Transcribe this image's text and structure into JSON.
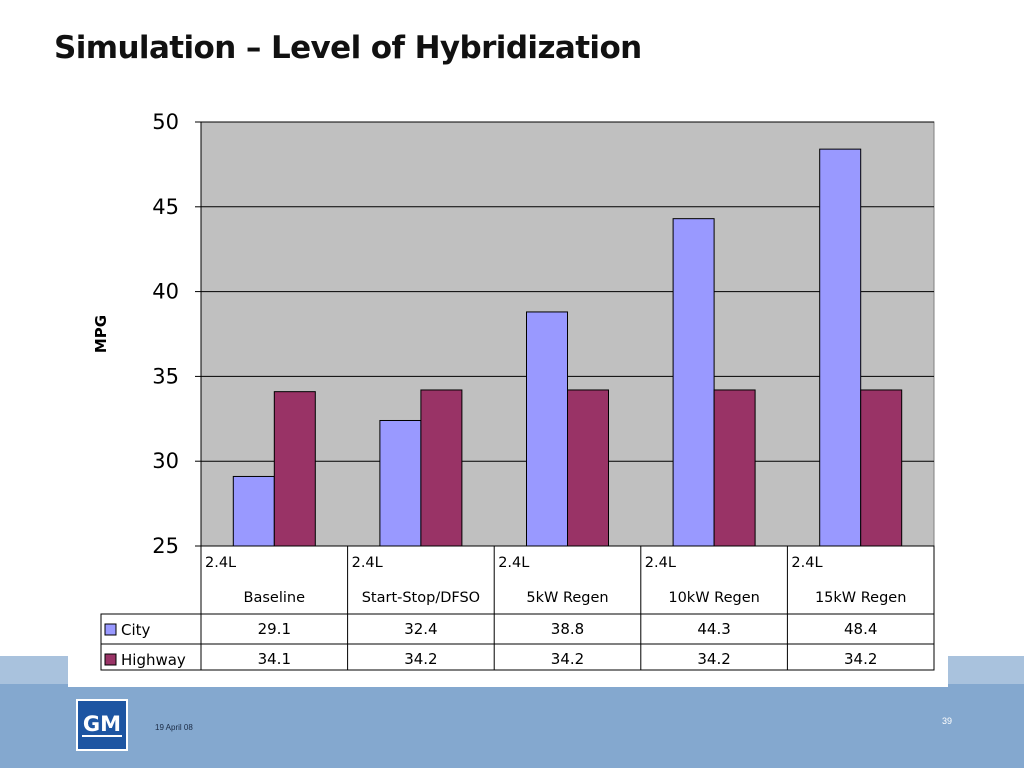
{
  "slide": {
    "title": "Simulation – Level of Hybridization",
    "date": "19 April 08",
    "page_number": "39",
    "logo_text": "GM"
  },
  "colors": {
    "city": "#9999ff",
    "highway": "#993366",
    "plot_background": "#c0c0c0",
    "band_upper": "#a9c2dd",
    "band_lower": "#84a8cf",
    "logo": "#1d55a2"
  },
  "chart_data": {
    "type": "bar",
    "ylabel": "MPG",
    "ylim": [
      25,
      50
    ],
    "yticks": [
      25,
      30,
      35,
      40,
      45,
      50
    ],
    "grid": true,
    "legend": "data-table",
    "categories": [
      {
        "line1": "2.4L",
        "line2": "Baseline"
      },
      {
        "line1": "2.4L",
        "line2": "Start-Stop/DFSO"
      },
      {
        "line1": "2.4L",
        "line2": "5kW Regen"
      },
      {
        "line1": "2.4L",
        "line2": "10kW Regen"
      },
      {
        "line1": "2.4L",
        "line2": "15kW Regen"
      }
    ],
    "series": [
      {
        "name": "City",
        "values": [
          29.1,
          32.4,
          38.8,
          44.3,
          48.4
        ]
      },
      {
        "name": "Highway",
        "values": [
          34.1,
          34.2,
          34.2,
          34.2,
          34.2
        ]
      }
    ]
  }
}
